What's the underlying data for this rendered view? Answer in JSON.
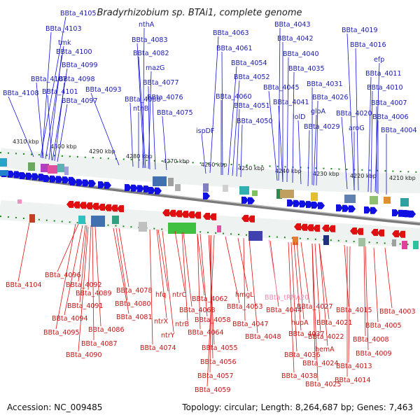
{
  "title": "Bradyrhizobium sp. BTAi1, complete genome",
  "footer": {
    "accession": "Accession: NC_009485",
    "topology": "Topology: circular; Length: 8,264,687 bp; Genes: 7,463"
  },
  "colors": {
    "forward_gene": "#1010e0",
    "reverse_gene": "#e01010",
    "forward_label": "#1a1ab4",
    "reverse_label": "#c81414",
    "rna_label": "#f08cb4",
    "axis_tick": "#1a8a1a"
  },
  "scale_ticks": [
    "4310 kbp",
    "4300 kbp",
    "4290 kbp",
    "4280 kbp",
    "4270 kbp",
    "4260 kbp",
    "4250 kbp",
    "4240 kbp",
    "4230 kbp",
    "4220 kbp",
    "4210 kbp"
  ],
  "top_labels": [
    "BBta_4105",
    "BBta_4103",
    "tmk",
    "BBta_4100",
    "BBta_4099",
    "BBta_4098",
    "BBta_4107",
    "BBta_4101",
    "BBta_4097",
    "BBta_4108",
    "BBta_4093",
    "BBta_4088",
    "nthB",
    "nthA",
    "BBta_4083",
    "BBta_4082",
    "mazG",
    "BBta_4077",
    "BBta_4076",
    "BBta_4075",
    "BBta_4063",
    "BBta_4061",
    "BBta_4054",
    "BBta_4052",
    "BBta_4060",
    "BBta_4051",
    "BBta_4050",
    "ispDF",
    "BBta_4043",
    "BBta_4042",
    "BBta_4040",
    "BBta_4035",
    "BBta_4045",
    "BBta_4031",
    "BBta_4041",
    "BBta_4026",
    "lolD",
    "gloA",
    "BBta_4029",
    "BBta_4019",
    "BBta_4016",
    "efp",
    "BBta_4011",
    "BBta_4010",
    "BBta_4007",
    "BBta_4020",
    "BBta_4006",
    "aroG",
    "BBta_4004"
  ],
  "bottom_labels": [
    "BBta_4104",
    "BBta_4096",
    "BBta_4092",
    "BBta_4089",
    "BBta_4091",
    "BBta_4094",
    "BBta_4095",
    "BBta_4086",
    "BBta_4087",
    "BBta_4090",
    "BBta_4078",
    "BBta_4080",
    "BBta_4081",
    "hfq",
    "ntrX",
    "ntrY",
    "BBta_4074",
    "ntrC",
    "BBta_4068",
    "ntrB",
    "BBta_4062",
    "BBta_4058",
    "BBta_4064",
    "BBta_4055",
    "BBta_4056",
    "BBta_4057",
    "BBta_4059",
    "BBta_4053",
    "hmgL",
    "BBta_4047",
    "BBta_4048",
    "BBta_4044",
    "BBta_tRNA20",
    "BBta_4027",
    "hupA",
    "BBta_4037",
    "BBta_4036",
    "BBta_4038",
    "BBta_4021",
    "BBta_4022",
    "hemA",
    "BBta_4024",
    "BBta_4025",
    "BBta_4015",
    "BBta_4013",
    "BBta_4014",
    "BBta_4003",
    "BBta_4005",
    "BBta_4008",
    "BBta_4009"
  ]
}
